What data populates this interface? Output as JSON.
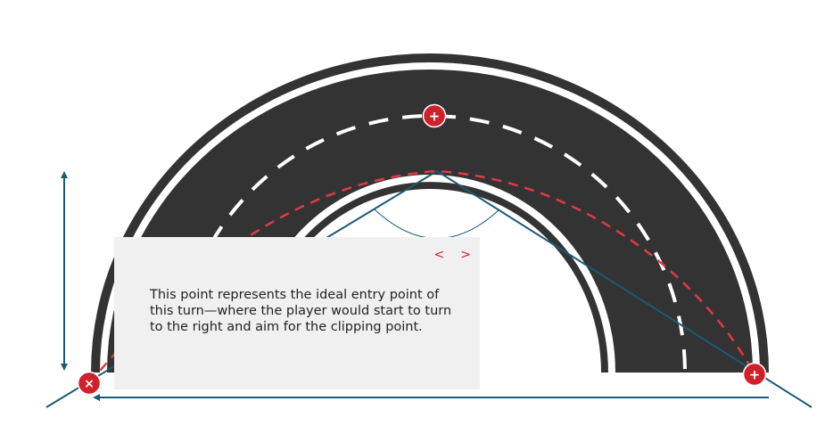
{
  "tooltip": {
    "text": "This point represents the ideal entry point of this turn—where the player would start to turn to the right and aim for the clipping point.",
    "prev_label": "<",
    "next_label": ">"
  },
  "hotspots": [
    {
      "name": "entry-point-hotspot",
      "glyph": "×",
      "active": true
    },
    {
      "name": "apex-hotspot",
      "glyph": "+",
      "active": false
    },
    {
      "name": "exit-point-hotspot",
      "glyph": "+",
      "active": false
    }
  ],
  "colors": {
    "track": "#333333",
    "track_edge": "#ffffff",
    "dash": "#ffffff",
    "racing_line": "#e03a45",
    "guide_line": "#1b5a78",
    "hotspot": "#d0202a",
    "tooltip_bg": "#f0f0f0"
  }
}
